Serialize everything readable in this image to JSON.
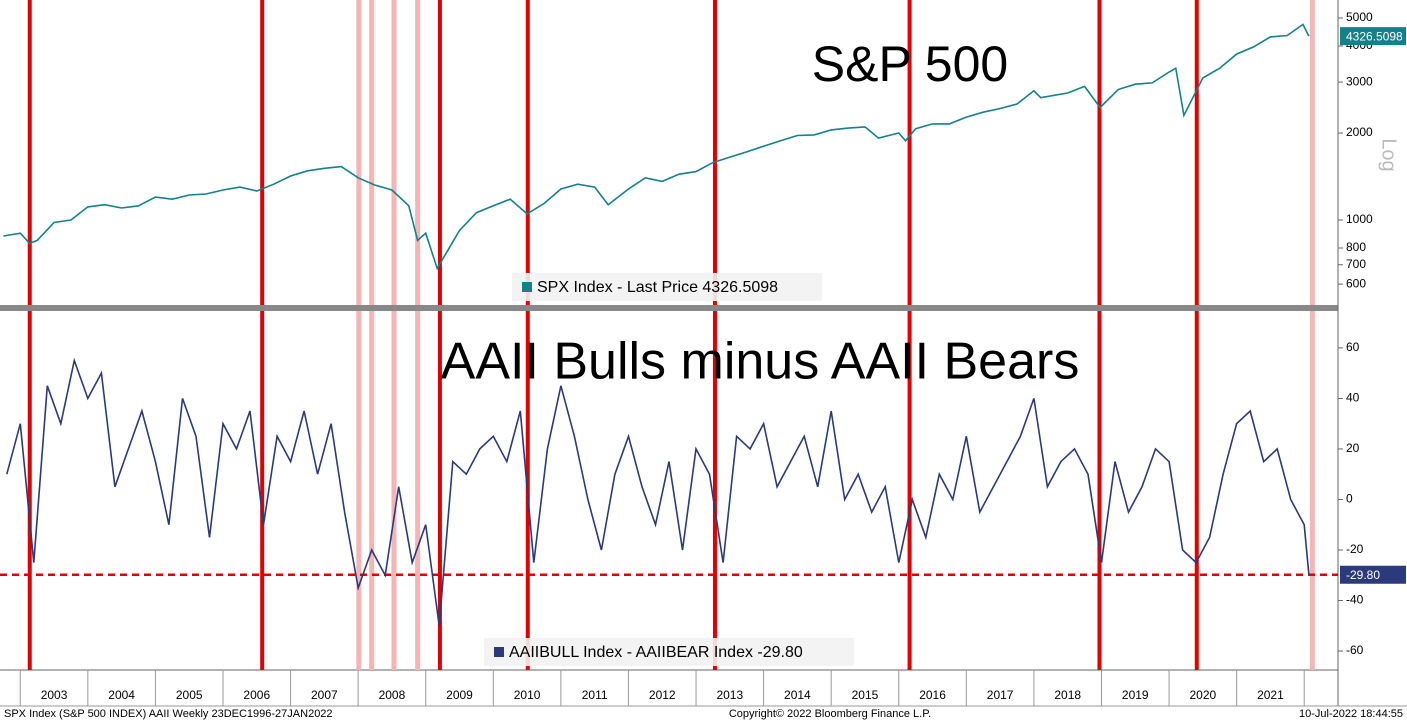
{
  "chart_data": [
    {
      "type": "line",
      "title": "S&P 500",
      "axis_label": "Log",
      "log_scale": true,
      "xlim": [
        2002.7,
        2022.5
      ],
      "ylim": [
        508,
        5770
      ],
      "yticks": [
        600,
        700,
        800,
        1000,
        2000,
        3000,
        4000,
        5000
      ],
      "x": [
        2002.75,
        2003.0,
        2003.14,
        2003.25,
        2003.5,
        2003.75,
        2004.0,
        2004.25,
        2004.5,
        2004.75,
        2005.0,
        2005.25,
        2005.5,
        2005.75,
        2006.0,
        2006.25,
        2006.5,
        2006.75,
        2007.0,
        2007.25,
        2007.5,
        2007.75,
        2008.0,
        2008.25,
        2008.5,
        2008.75,
        2008.88,
        2009.0,
        2009.17,
        2009.5,
        2009.75,
        2010.0,
        2010.25,
        2010.5,
        2010.75,
        2011.0,
        2011.25,
        2011.5,
        2011.7,
        2012.0,
        2012.25,
        2012.5,
        2012.75,
        2013.0,
        2013.25,
        2013.5,
        2013.75,
        2014.0,
        2014.25,
        2014.5,
        2014.75,
        2015.0,
        2015.25,
        2015.5,
        2015.7,
        2016.0,
        2016.1,
        2016.25,
        2016.5,
        2016.75,
        2017.0,
        2017.25,
        2017.5,
        2017.75,
        2018.0,
        2018.1,
        2018.5,
        2018.75,
        2018.98,
        2019.25,
        2019.5,
        2019.75,
        2020.0,
        2020.1,
        2020.22,
        2020.5,
        2020.75,
        2021.0,
        2021.25,
        2021.5,
        2021.75,
        2021.98,
        2022.07
      ],
      "series": [
        {
          "name": "SPX Index - Last Price 4326.5098",
          "color": "#14808a",
          "values": [
            880,
            900,
            830,
            850,
            980,
            1000,
            1110,
            1130,
            1100,
            1120,
            1200,
            1180,
            1220,
            1230,
            1270,
            1300,
            1260,
            1330,
            1420,
            1480,
            1510,
            1530,
            1400,
            1320,
            1270,
            1120,
            850,
            900,
            680,
            920,
            1060,
            1120,
            1180,
            1050,
            1140,
            1280,
            1330,
            1300,
            1130,
            1280,
            1400,
            1360,
            1440,
            1470,
            1580,
            1650,
            1720,
            1800,
            1880,
            1960,
            1970,
            2050,
            2080,
            2100,
            1920,
            2000,
            1880,
            2070,
            2150,
            2150,
            2270,
            2360,
            2430,
            2520,
            2800,
            2650,
            2750,
            2900,
            2450,
            2830,
            2950,
            2980,
            3250,
            3350,
            2300,
            3100,
            3350,
            3750,
            3970,
            4300,
            4350,
            4750,
            4326.5098
          ]
        }
      ],
      "markers": {
        "color": "#e00000",
        "x": [
          2003.14,
          2006.58,
          2009.21,
          2010.51,
          2013.28,
          2016.16,
          2018.97,
          2020.41
        ]
      },
      "faint_markers": {
        "color": "#f5b5b5",
        "x": [
          2008.01,
          2008.2,
          2008.53,
          2008.88,
          2022.12
        ]
      }
    },
    {
      "type": "line",
      "title": "AAII Bulls minus AAII Bears",
      "xlim": [
        2002.7,
        2022.5
      ],
      "ylim": [
        -67.5,
        74.6
      ],
      "yticks": [
        -60,
        -40,
        -20,
        0,
        20,
        40,
        60
      ],
      "xticks": [
        {
          "value": 2003.5,
          "label": "2003"
        },
        {
          "value": 2004.5,
          "label": "2004"
        },
        {
          "value": 2005.5,
          "label": "2005"
        },
        {
          "value": 2006.5,
          "label": "2006"
        },
        {
          "value": 2007.5,
          "label": "2007"
        },
        {
          "value": 2008.5,
          "label": "2008"
        },
        {
          "value": 2009.5,
          "label": "2009"
        },
        {
          "value": 2010.5,
          "label": "2010"
        },
        {
          "value": 2011.5,
          "label": "2011"
        },
        {
          "value": 2012.5,
          "label": "2012"
        },
        {
          "value": 2013.5,
          "label": "2013"
        },
        {
          "value": 2014.5,
          "label": "2014"
        },
        {
          "value": 2015.5,
          "label": "2015"
        },
        {
          "value": 2016.5,
          "label": "2016"
        },
        {
          "value": 2017.5,
          "label": "2017"
        },
        {
          "value": 2018.5,
          "label": "2018"
        },
        {
          "value": 2019.5,
          "label": "2019"
        },
        {
          "value": 2020.5,
          "label": "2020"
        },
        {
          "value": 2021.5,
          "label": "2021"
        }
      ],
      "x": [
        2002.8,
        2003.0,
        2003.2,
        2003.4,
        2003.6,
        2003.8,
        2004.0,
        2004.2,
        2004.4,
        2004.6,
        2004.8,
        2005.0,
        2005.2,
        2005.4,
        2005.6,
        2005.8,
        2006.0,
        2006.2,
        2006.4,
        2006.6,
        2006.8,
        2007.0,
        2007.2,
        2007.4,
        2007.6,
        2007.8,
        2008.0,
        2008.2,
        2008.4,
        2008.6,
        2008.8,
        2009.0,
        2009.2,
        2009.4,
        2009.6,
        2009.8,
        2010.0,
        2010.2,
        2010.4,
        2010.6,
        2010.8,
        2011.0,
        2011.2,
        2011.4,
        2011.6,
        2011.8,
        2012.0,
        2012.2,
        2012.4,
        2012.6,
        2012.8,
        2013.0,
        2013.2,
        2013.4,
        2013.6,
        2013.8,
        2014.0,
        2014.2,
        2014.4,
        2014.6,
        2014.8,
        2015.0,
        2015.2,
        2015.4,
        2015.6,
        2015.8,
        2016.0,
        2016.2,
        2016.4,
        2016.6,
        2016.8,
        2017.0,
        2017.2,
        2017.4,
        2017.6,
        2017.8,
        2018.0,
        2018.2,
        2018.4,
        2018.6,
        2018.8,
        2019.0,
        2019.2,
        2019.4,
        2019.6,
        2019.8,
        2020.0,
        2020.2,
        2020.4,
        2020.6,
        2020.8,
        2021.0,
        2021.2,
        2021.4,
        2021.6,
        2021.8,
        2022.0,
        2022.07
      ],
      "series": [
        {
          "name": "AAIIBULL Index - AAIIBEAR Index -29.80",
          "color": "#2b3a7a",
          "values": [
            10,
            30,
            -25,
            45,
            30,
            55,
            40,
            50,
            5,
            20,
            35,
            15,
            -10,
            40,
            25,
            -15,
            30,
            20,
            35,
            -10,
            25,
            15,
            35,
            10,
            30,
            -5,
            -35,
            -20,
            -30,
            5,
            -25,
            -10,
            -50,
            15,
            10,
            20,
            25,
            15,
            35,
            -25,
            20,
            45,
            25,
            0,
            -20,
            10,
            25,
            5,
            -10,
            15,
            -20,
            20,
            10,
            -25,
            25,
            20,
            30,
            5,
            15,
            25,
            5,
            35,
            0,
            10,
            -5,
            5,
            -25,
            0,
            -15,
            10,
            0,
            25,
            -5,
            5,
            15,
            25,
            40,
            5,
            15,
            20,
            10,
            -25,
            15,
            -5,
            5,
            20,
            15,
            -20,
            -25,
            -15,
            10,
            30,
            35,
            15,
            20,
            0,
            -10,
            -29.8
          ]
        }
      ],
      "reference": {
        "value": -29.8,
        "label": "-29.80",
        "color": "#e00000"
      }
    }
  ],
  "footer": {
    "left": "SPX Index (S&P 500 INDEX) AAII  Weekly 23DEC1996-27JAN2022",
    "center": "Copyright© 2022 Bloomberg Finance L.P.",
    "right": "10-Jul-2022 18:44:55"
  }
}
